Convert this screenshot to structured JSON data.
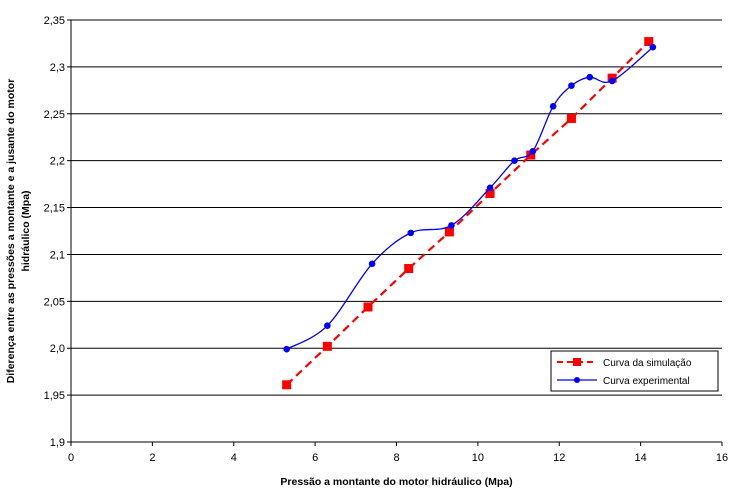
{
  "chart_data": {
    "type": "line",
    "title": "",
    "xlabel": "Pressão a montante do motor hidráulico (Mpa)",
    "ylabel": "Diferença entre as pressões a montante e a jusante do motor hidráulico (Mpa)",
    "ylabel_lines": [
      "Diferença entre as pressões a montante e a jusante do motor",
      "hidráulico (Mpa)"
    ],
    "xlim": [
      0,
      16
    ],
    "ylim": [
      1.9,
      2.35
    ],
    "x_ticks": [
      0,
      2,
      4,
      6,
      8,
      10,
      12,
      14,
      16
    ],
    "x_tick_labels": [
      "0",
      "2",
      "4",
      "6",
      "8",
      "10",
      "12",
      "14",
      "16"
    ],
    "y_ticks": [
      1.9,
      1.95,
      2.0,
      2.05,
      2.1,
      2.15,
      2.2,
      2.25,
      2.3,
      2.35
    ],
    "y_tick_labels": [
      "1,9",
      "1,95",
      "2,0",
      "2,05",
      "2,1",
      "2,15",
      "2,2",
      "2,25",
      "2,3",
      "2,35"
    ],
    "grid": "horizontal",
    "legend_position": "bottom-right",
    "series": [
      {
        "name": "Curva da simulação",
        "color": "#ff0000",
        "line_style": "dashed",
        "marker": "square",
        "x": [
          5.3,
          6.3,
          7.3,
          8.3,
          9.3,
          10.3,
          11.3,
          12.3,
          13.3,
          14.2
        ],
        "y": [
          1.961,
          2.002,
          2.044,
          2.085,
          2.124,
          2.165,
          2.206,
          2.245,
          2.288,
          2.327
        ]
      },
      {
        "name": "Curva experimental",
        "color": "#0000ff",
        "line_style": "solid",
        "marker": "circle",
        "x": [
          5.3,
          6.3,
          7.4,
          8.35,
          9.35,
          10.3,
          10.9,
          11.35,
          11.85,
          12.3,
          12.75,
          13.3,
          14.3
        ],
        "y": [
          1.999,
          2.024,
          2.09,
          2.123,
          2.131,
          2.171,
          2.2,
          2.21,
          2.258,
          2.28,
          2.289,
          2.285,
          2.321
        ]
      }
    ]
  }
}
